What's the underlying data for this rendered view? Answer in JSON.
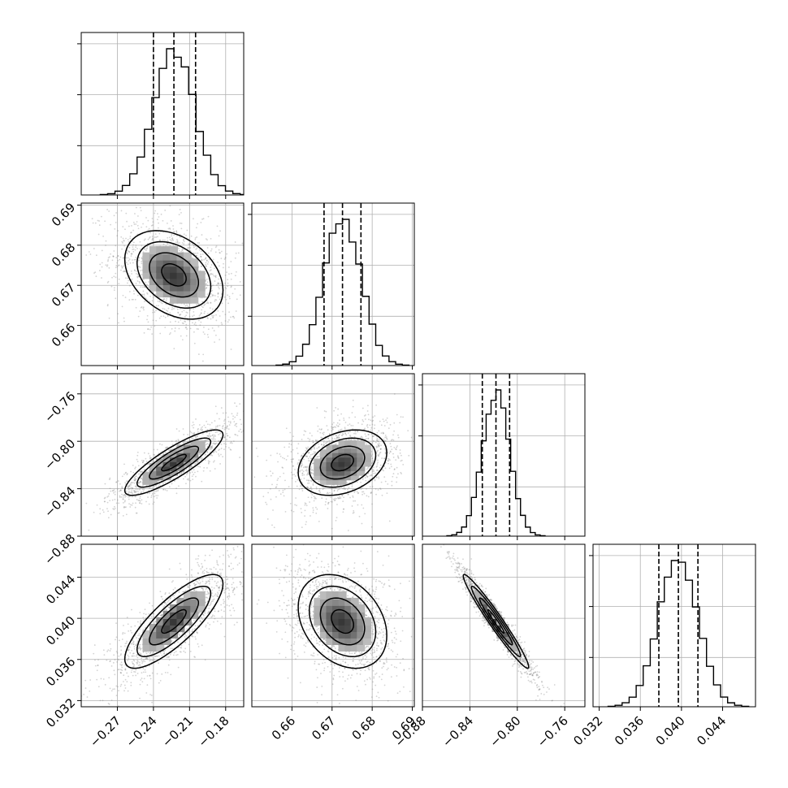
{
  "chart_data": {
    "type": "corner",
    "description_note": "",
    "parameters": [
      {
        "id": "p0",
        "mean": -0.223,
        "sd": 0.017,
        "q16": -0.24,
        "q50": -0.223,
        "q84": -0.205,
        "range": [
          -0.3,
          -0.165
        ],
        "ticks": [
          -0.27,
          -0.24,
          -0.21,
          -0.18
        ],
        "tick_labels": [
          "−0.27",
          "−0.24",
          "−0.21",
          "−0.18"
        ]
      },
      {
        "id": "p1",
        "mean": 0.6726,
        "sd": 0.0046,
        "q16": 0.668,
        "q50": 0.6726,
        "q84": 0.6772,
        "range": [
          0.65,
          0.6905
        ],
        "ticks": [
          0.66,
          0.67,
          0.68,
          0.69
        ],
        "tick_labels": [
          "0.66",
          "0.67",
          "0.68",
          "0.69"
        ]
      },
      {
        "id": "p2",
        "mean": -0.818,
        "sd": 0.0115,
        "q16": -0.8295,
        "q50": -0.818,
        "q84": -0.8065,
        "range": [
          -0.88,
          -0.743
        ],
        "ticks": [
          -0.88,
          -0.84,
          -0.8,
          -0.76
        ],
        "tick_labels": [
          "−0.88",
          "−0.84",
          "−0.80",
          "−0.76"
        ]
      },
      {
        "id": "p3",
        "mean": 0.0397,
        "sd": 0.0019,
        "q16": 0.0378,
        "q50": 0.0397,
        "q84": 0.0416,
        "range": [
          0.0314,
          0.0472
        ],
        "ticks": [
          0.032,
          0.036,
          0.04,
          0.044
        ],
        "tick_labels": [
          "0.032",
          "0.036",
          "0.040",
          "0.044"
        ]
      }
    ],
    "correlations": {
      "p1_p0": -0.35,
      "p2_p0": 0.85,
      "p2_p1": 0.3,
      "p3_p0": 0.8,
      "p3_p1": -0.3,
      "p3_p2": -0.97
    },
    "histogram_bins": 20,
    "quantile_lines": [
      0.16,
      0.5,
      0.84
    ],
    "grid": true,
    "point_color": "#808080",
    "line_color": "#000000"
  }
}
